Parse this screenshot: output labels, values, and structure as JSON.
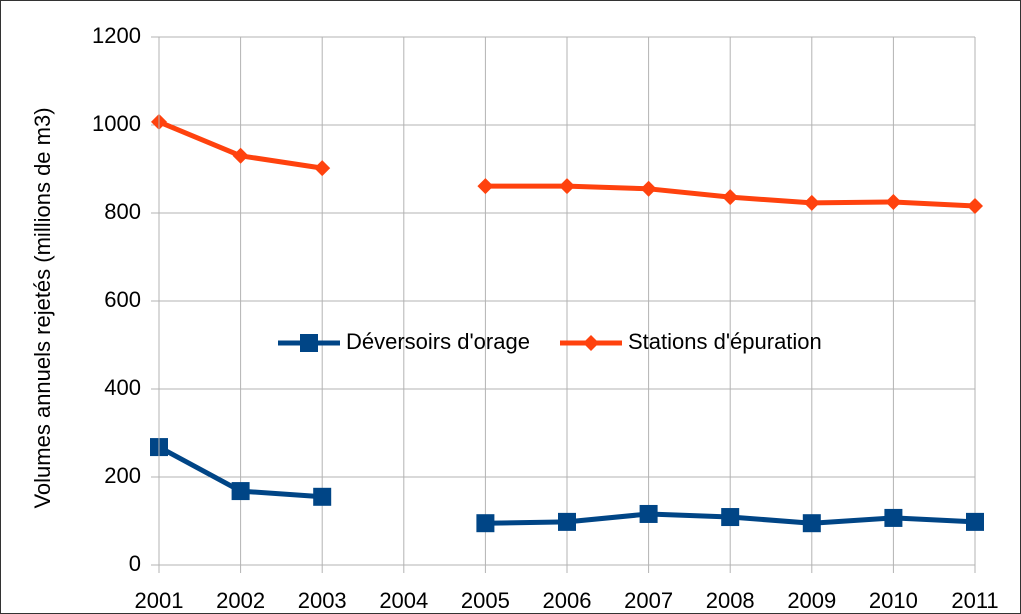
{
  "chart_data": {
    "type": "line",
    "y_label": "Volumes annuels rejetés (millions de m3)",
    "categories": [
      "2001",
      "2002",
      "2003",
      "2004",
      "2005",
      "2006",
      "2007",
      "2008",
      "2009",
      "2010",
      "2011"
    ],
    "series": [
      {
        "name": "Déversoirs d'orage",
        "color": "#004586",
        "marker": "square",
        "values": [
          268,
          168,
          155,
          null,
          95,
          98,
          116,
          109,
          95,
          107,
          98
        ]
      },
      {
        "name": "Stations d'épuration",
        "color": "#ff420e",
        "marker": "diamond",
        "values": [
          1007,
          930,
          902,
          null,
          861,
          861,
          855,
          836,
          823,
          825,
          816
        ]
      }
    ],
    "ylim": [
      0,
      1200
    ],
    "yticks": [
      0,
      200,
      400,
      600,
      800,
      1000,
      1200
    ],
    "grid": true,
    "legend": "center"
  }
}
